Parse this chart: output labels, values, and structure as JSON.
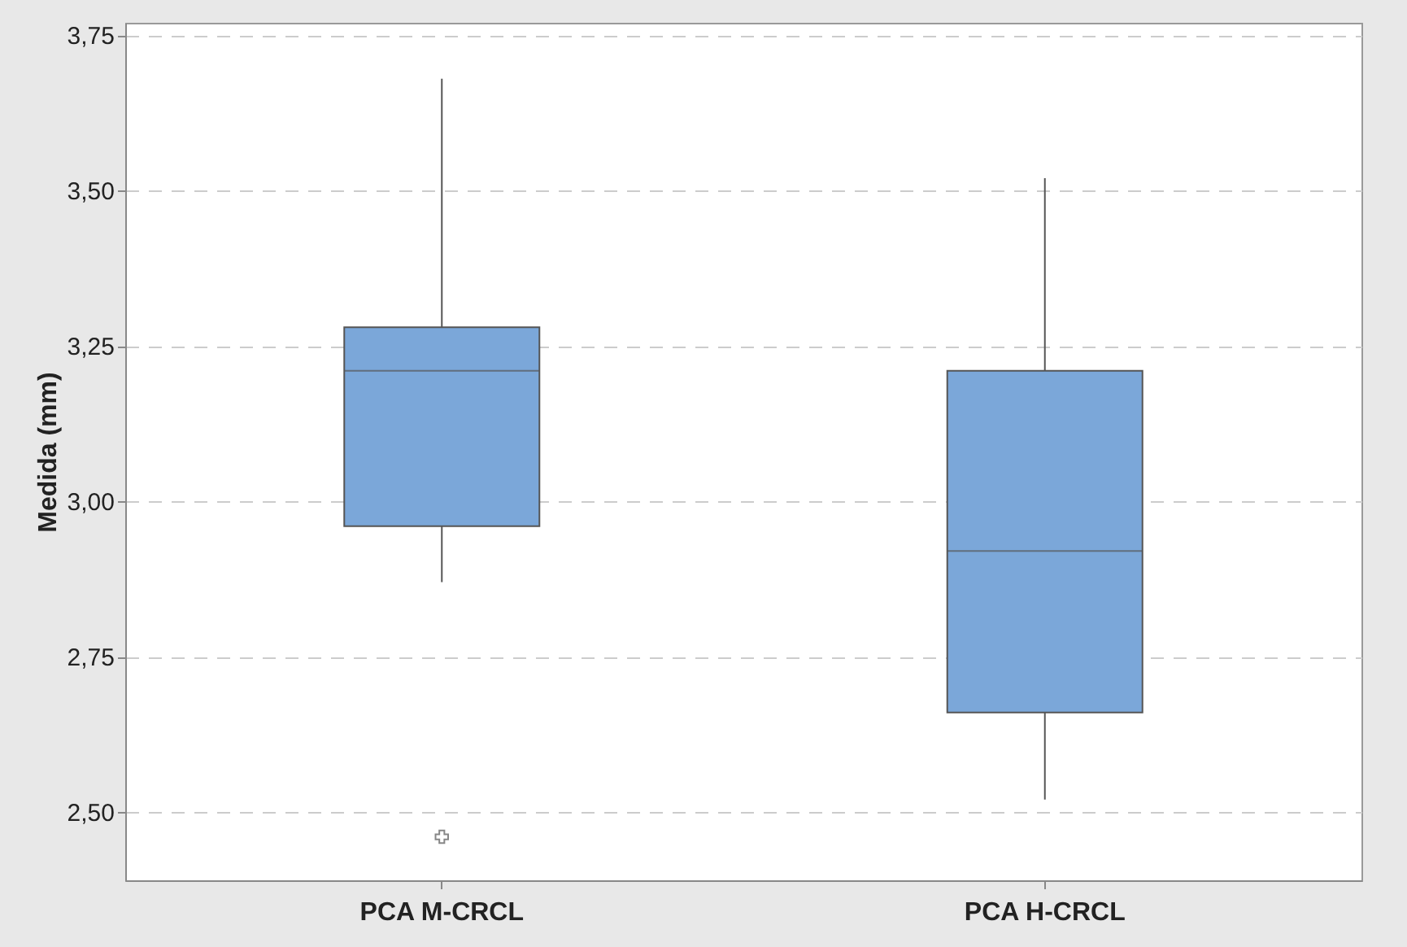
{
  "chart_data": {
    "type": "box",
    "ylabel": "Medida (mm)",
    "categories": [
      "PCA M-CRCL",
      "PCA H-CRCL"
    ],
    "boxes": [
      {
        "low": 2.87,
        "q1": 2.96,
        "median": 3.21,
        "q3": 3.28,
        "high": 3.68,
        "outliers": [
          2.46
        ]
      },
      {
        "low": 2.52,
        "q1": 2.66,
        "median": 2.92,
        "q3": 3.21,
        "high": 3.52
      }
    ],
    "color": "#7ba7d9",
    "ylim": [
      2.39,
      3.77
    ],
    "yticks": [
      {
        "value": 2.5,
        "label": "2,50"
      },
      {
        "value": 2.75,
        "label": "2,75"
      },
      {
        "value": 3.0,
        "label": "3,00"
      },
      {
        "value": 3.25,
        "label": "3,25"
      },
      {
        "value": 3.5,
        "label": "3,50"
      },
      {
        "value": 3.75,
        "label": "3,75"
      }
    ],
    "grid": "y",
    "marker": "cross"
  }
}
